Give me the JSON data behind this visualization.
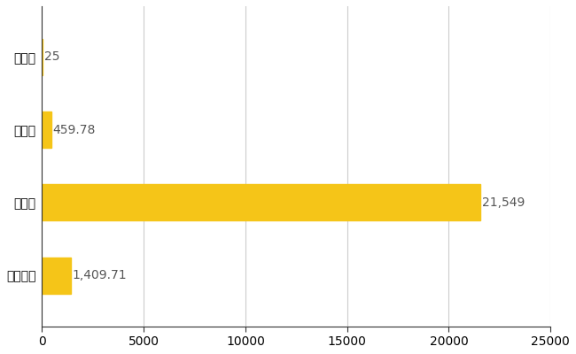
{
  "categories": [
    "島牧村",
    "県平均",
    "県最大",
    "全国平均"
  ],
  "values": [
    25,
    459.78,
    21549,
    1409.71
  ],
  "labels": [
    "25",
    "459.78",
    "21,549",
    "1,409.71"
  ],
  "bar_color": "#F5C518",
  "bar_height": 0.5,
  "xlim": [
    0,
    25000
  ],
  "xticks": [
    0,
    5000,
    10000,
    15000,
    20000,
    25000
  ],
  "xtick_labels": [
    "0",
    "5000",
    "10000",
    "15000",
    "20000",
    "25000"
  ],
  "grid_color": "#cccccc",
  "background_color": "#ffffff",
  "label_fontsize": 10,
  "tick_fontsize": 10,
  "value_label_color": "#555555"
}
